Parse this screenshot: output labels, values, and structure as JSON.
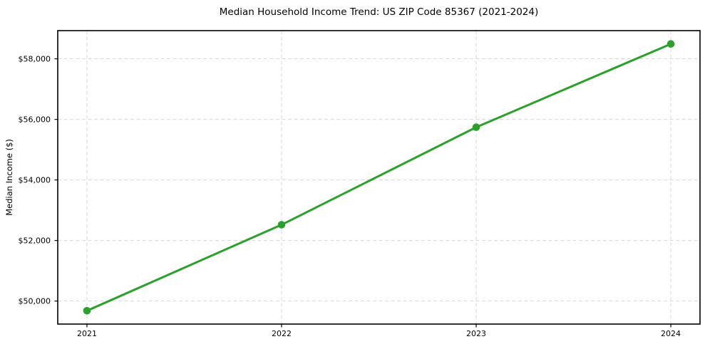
{
  "chart_data": {
    "type": "line",
    "title": "Median Household Income Trend: US ZIP Code 85367 (2021-2024)",
    "xlabel": "",
    "ylabel": "Median Income ($)",
    "x": [
      2021,
      2022,
      2023,
      2024
    ],
    "xtick_labels": [
      "2021",
      "2022",
      "2023",
      "2024"
    ],
    "series": [
      {
        "name": "Median Household Income",
        "values": [
          49680,
          52520,
          55740,
          58490
        ],
        "color": "#2ca02c",
        "marker": "circle",
        "line_width": 3,
        "marker_radius": 5.3
      }
    ],
    "xlim": [
      2020.85,
      2024.15
    ],
    "ylim": [
      49240,
      58930
    ],
    "yticks": [
      50000,
      52000,
      54000,
      56000,
      58000
    ],
    "ytick_labels": [
      "$50,000",
      "$52,000",
      "$54,000",
      "$56,000",
      "$58,000"
    ],
    "grid": {
      "show": true,
      "style": "dashed",
      "color": "#d7d7d7",
      "dash": "5,3.5"
    },
    "legend": "none",
    "spine_color": "#000000",
    "tick_color": "#000000",
    "background": "#ffffff"
  }
}
